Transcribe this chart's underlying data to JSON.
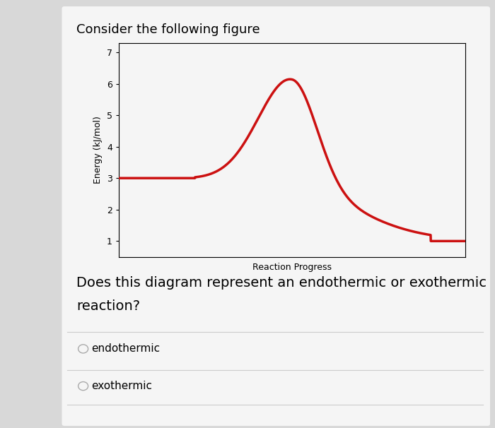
{
  "title": "Consider the following figure",
  "xlabel": "Reaction Progress",
  "ylabel": "Energy (kJ/mol)",
  "ylim": [
    0.5,
    7.3
  ],
  "xlim": [
    0,
    10
  ],
  "yticks": [
    1,
    2,
    3,
    4,
    5,
    6,
    7
  ],
  "line_color": "#cc1111",
  "line_width": 2.5,
  "outer_bg_color": "#d8d8d8",
  "card_bg_color": "#f5f5f5",
  "plot_bg_color": "#f5f5f5",
  "question_text1": "Does this diagram represent an endothermic or exothermic",
  "question_text2": "reaction?",
  "option1": "endothermic",
  "option2": "exothermic",
  "reactant_energy": 3.0,
  "product_energy": 1.0,
  "peak_energy": 6.4,
  "title_fontsize": 13,
  "axis_label_fontsize": 9,
  "tick_fontsize": 9,
  "question_fontsize": 14,
  "option_fontsize": 11
}
